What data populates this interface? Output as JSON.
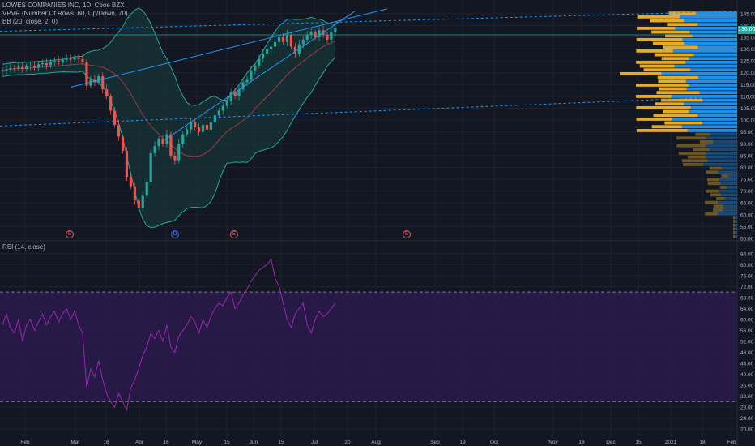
{
  "header": {
    "symbol_line": "LOWES COMPANIES INC, 1D, Cboe BZX",
    "vpvr_line": "VPVR (Number Of Rows, 60, Up/Down, 70)",
    "bb_line": "BB (20, close, 2, 0)"
  },
  "rsi_panel": {
    "label": "RSI (14, close)"
  },
  "price_tag": "136.00",
  "events": [
    {
      "type": "earnings",
      "letter": "E"
    },
    {
      "type": "dividend",
      "letter": "D"
    },
    {
      "type": "earnings",
      "letter": "E"
    },
    {
      "type": "earnings",
      "letter": "E"
    }
  ],
  "colors": {
    "background": "#131722",
    "up": "#26a69a",
    "down": "#ef5350",
    "bb_line": "#26a69a",
    "bb_fill": "#173a3a",
    "basis": "#9c3a4a",
    "trend": "#2196f3",
    "rsi": "#9c27b0",
    "rsi_band": "#2a1a4a",
    "vp_up": "#2196f3",
    "vp_down": "#f0b429"
  },
  "chart_data": [
    {
      "type": "candlestick",
      "title": "",
      "x_ticks": [
        "Feb",
        "Mar",
        "16",
        "Apr",
        "16",
        "May",
        "15",
        "Jun",
        "15",
        "Jul",
        "20",
        "Aug",
        "Sep",
        "19",
        "Oct",
        "Nov",
        "16",
        "Dec",
        "15",
        "2021",
        "18",
        "Feb"
      ],
      "y_ticks": [
        "145.00",
        "140.00",
        "135.00",
        "130.00",
        "125.00",
        "120.00",
        "115.00",
        "110.00",
        "105.00",
        "100.00",
        "95.00",
        "90.00",
        "85.00",
        "80.00",
        "75.00",
        "70.00",
        "65.00",
        "60.00",
        "55.00",
        "50.00"
      ],
      "ylim": [
        50,
        148
      ],
      "closes": [
        121,
        121.5,
        122,
        121.8,
        122.5,
        121.6,
        122.8,
        123,
        122.2,
        123.6,
        124,
        123.2,
        124.5,
        125,
        124.3,
        125.5,
        126,
        125.6,
        126.5,
        125.8,
        124.5,
        114.5,
        117,
        116,
        118.5,
        113,
        110,
        104,
        98,
        93,
        87,
        76,
        72,
        66,
        63,
        68,
        74,
        86,
        89,
        92,
        90,
        94,
        85,
        83,
        90,
        94,
        96,
        99,
        97,
        95,
        98,
        96,
        99,
        102,
        104,
        106,
        108,
        112,
        110,
        113,
        116,
        117,
        121,
        123,
        126,
        128,
        130,
        131,
        133,
        135,
        133,
        136,
        131,
        128,
        132,
        134,
        136,
        137,
        135,
        138,
        136,
        134,
        137,
        139
      ],
      "bb_upper_lim": "envelope around price",
      "trend_lines": [
        "rising channel upper",
        "rising channel lower",
        "long-term support",
        "long-term resistance",
        "horizontal at 136"
      ],
      "volume_profile": "60 rows, up/down split"
    },
    {
      "type": "line",
      "title": "",
      "series_name": "RSI (14, close)",
      "y_ticks": [
        "84.00",
        "80.00",
        "76.00",
        "72.00",
        "68.00",
        "64.00",
        "60.00",
        "56.00",
        "52.00",
        "48.00",
        "44.00",
        "40.00",
        "36.00",
        "32.00",
        "28.00",
        "24.00",
        "20.00"
      ],
      "ylim": [
        18,
        86
      ],
      "bands": [
        30,
        70
      ],
      "values": [
        58,
        62,
        57,
        55,
        60,
        52,
        58,
        60,
        56,
        59,
        62,
        58,
        61,
        63,
        59,
        62,
        64,
        60,
        63,
        58,
        55,
        35,
        42,
        39,
        45,
        38,
        33,
        30,
        28,
        33,
        30,
        27,
        35,
        38,
        42,
        47,
        50,
        55,
        53,
        56,
        52,
        58,
        50,
        48,
        54,
        56,
        58,
        61,
        59,
        55,
        60,
        57,
        61,
        64,
        66,
        65,
        68,
        70,
        64,
        66,
        69,
        71,
        74,
        76,
        78,
        79,
        80,
        82,
        75,
        72,
        66,
        60,
        57,
        62,
        64,
        66,
        58,
        55,
        60,
        63,
        61,
        62,
        64,
        66
      ]
    }
  ]
}
